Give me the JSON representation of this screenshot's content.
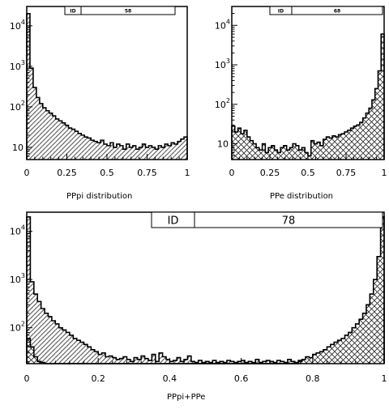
{
  "chart_data": [
    {
      "type": "histogram",
      "id_label": "ID",
      "id_value": "58",
      "xlabel": "PPpi distribution",
      "yscale": "log",
      "xlim": [
        0,
        1
      ],
      "ylim": [
        5,
        30000
      ],
      "xticks": [
        0,
        0.25,
        0.5,
        0.75,
        1
      ],
      "xtick_labels": [
        "0",
        "0.25",
        "0.5",
        "0.75",
        "1"
      ],
      "yticks": [
        10,
        100,
        1000,
        10000
      ],
      "ytick_labels": [
        {
          "base": "10",
          "exp": ""
        },
        {
          "base": "10",
          "exp": "2"
        },
        {
          "base": "10",
          "exp": "3"
        },
        {
          "base": "10",
          "exp": "4"
        }
      ],
      "fill": "diagonal-hatch",
      "series": [
        {
          "x_start": 0,
          "bin_width": 0.02,
          "values": [
            20000,
            900,
            300,
            170,
            120,
            95,
            80,
            70,
            60,
            50,
            45,
            40,
            35,
            30,
            28,
            25,
            22,
            20,
            18,
            17,
            15,
            14,
            13,
            15,
            12,
            11,
            13,
            10,
            12,
            11,
            9,
            12,
            10,
            11,
            9,
            10,
            12,
            10,
            11,
            10,
            9,
            11,
            10,
            12,
            11,
            13,
            12,
            14,
            16,
            18
          ]
        }
      ]
    },
    {
      "type": "histogram",
      "id_label": "ID",
      "id_value": "68",
      "xlabel": "PPe distribution",
      "yscale": "log",
      "xlim": [
        0,
        1
      ],
      "ylim": [
        4,
        30000
      ],
      "xticks": [
        0,
        0.25,
        0.5,
        0.75,
        1
      ],
      "xtick_labels": [
        "0",
        "0.25",
        "0.5",
        "0.75",
        "1"
      ],
      "yticks": [
        10,
        100,
        1000,
        10000
      ],
      "ytick_labels": [
        {
          "base": "10",
          "exp": ""
        },
        {
          "base": "10",
          "exp": "2"
        },
        {
          "base": "10",
          "exp": "3"
        },
        {
          "base": "10",
          "exp": "4"
        }
      ],
      "fill": "cross-hatch",
      "series": [
        {
          "x_start": 0,
          "bin_width": 0.02,
          "values": [
            28,
            20,
            25,
            18,
            22,
            15,
            12,
            10,
            8,
            7,
            10,
            6,
            8,
            9,
            7,
            6,
            8,
            9,
            7,
            8,
            10,
            9,
            7,
            8,
            6,
            5,
            12,
            10,
            11,
            9,
            13,
            15,
            14,
            16,
            15,
            17,
            18,
            20,
            22,
            25,
            28,
            30,
            35,
            45,
            60,
            80,
            130,
            250,
            700,
            6000
          ]
        }
      ]
    },
    {
      "type": "histogram",
      "id_label": "ID",
      "id_value": "78",
      "xlabel": "PPpi+PPe",
      "yscale": "log",
      "xlim": [
        0,
        1
      ],
      "ylim": [
        18,
        25000
      ],
      "xticks": [
        0,
        0.2,
        0.4,
        0.6,
        0.8,
        1
      ],
      "xtick_labels": [
        "0",
        "0.2",
        "0.4",
        "0.6",
        "0.8",
        "1"
      ],
      "yticks": [
        100,
        1000,
        10000
      ],
      "ytick_labels": [
        {
          "base": "10",
          "exp": "2"
        },
        {
          "base": "10",
          "exp": "3"
        },
        {
          "base": "10",
          "exp": "4"
        }
      ],
      "series": [
        {
          "name": "",
          "fill": "diagonal-hatch",
          "x_start": 0,
          "bin_width": 0.01,
          "values": [
            20000,
            900,
            500,
            350,
            250,
            200,
            170,
            140,
            120,
            100,
            90,
            80,
            70,
            60,
            55,
            50,
            45,
            40,
            35,
            32,
            28,
            30,
            25,
            26,
            24,
            22,
            23,
            25,
            22,
            20,
            24,
            22,
            26,
            23,
            21,
            28,
            20,
            30,
            25,
            22,
            20,
            21,
            24,
            20,
            22,
            26,
            20,
            19,
            21,
            19,
            20,
            19,
            21,
            19,
            20,
            19,
            21,
            20,
            19,
            20,
            21,
            19,
            20,
            19,
            22,
            19,
            20,
            21,
            20,
            19,
            21,
            20,
            19,
            22,
            20,
            19,
            21,
            20,
            22,
            19,
            21,
            19,
            20,
            21,
            19,
            20,
            22,
            20,
            21,
            19,
            20,
            21,
            22,
            21,
            25,
            30,
            35,
            50,
            200,
            900
          ]
        },
        {
          "name": "",
          "fill": "cross-hatch",
          "x_start": 0,
          "bin_width": 0.01,
          "values": [
            60,
            40,
            25,
            20,
            19,
            18,
            18,
            18,
            18,
            18,
            18,
            18,
            18,
            18,
            18,
            18,
            18,
            18,
            18,
            18,
            18,
            18,
            18,
            18,
            18,
            18,
            18,
            18,
            18,
            18,
            18,
            18,
            18,
            18,
            18,
            18,
            18,
            18,
            18,
            18,
            18,
            18,
            18,
            18,
            18,
            18,
            18,
            18,
            18,
            18,
            18,
            18,
            18,
            18,
            18,
            18,
            18,
            18,
            18,
            18,
            18,
            18,
            18,
            18,
            18,
            18,
            18,
            18,
            18,
            18,
            18,
            18,
            18,
            18,
            18,
            18,
            20,
            22,
            25,
            24,
            28,
            30,
            32,
            35,
            40,
            45,
            50,
            55,
            60,
            70,
            80,
            100,
            120,
            150,
            200,
            300,
            500,
            1000,
            3000,
            20000
          ]
        }
      ]
    }
  ]
}
